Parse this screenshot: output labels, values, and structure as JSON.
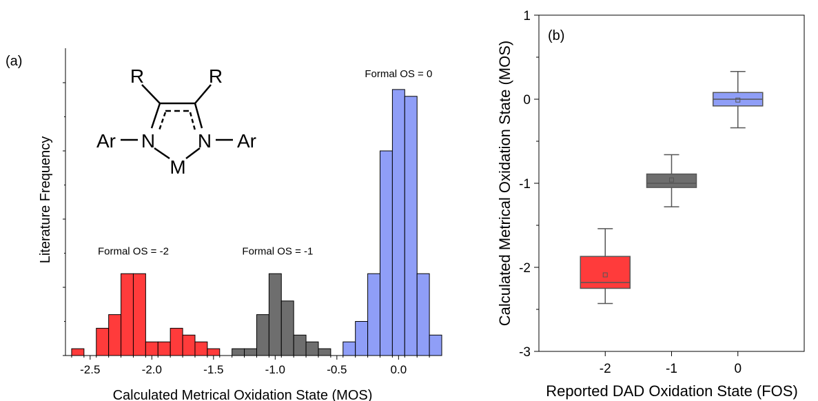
{
  "chart_data": [
    {
      "type": "bar",
      "panel_label": "(a)",
      "xlabel": "Calculated Metrical Oxidation State (MOS)",
      "ylabel": "Literature Frequency",
      "xlim": [
        -2.7,
        0.35
      ],
      "ylim": [
        0,
        20
      ],
      "x_tick_labels": [
        "-2.5",
        "-2.0",
        "-1.5",
        "-1.0",
        "-0.5",
        "0.0"
      ],
      "x_ticks": [
        -2.5,
        -2.0,
        -1.5,
        -1.0,
        -0.5,
        0.0
      ],
      "y_ticks": [
        0,
        5,
        10,
        15,
        20
      ],
      "bin_width": 0.1,
      "series": [
        {
          "name": "Formal OS = -2",
          "color": "#ff3b3b",
          "label_x": -2.15,
          "label_y": 7.4,
          "bins": [
            {
              "x": -2.6,
              "count": 0.5
            },
            {
              "x": -2.4,
              "count": 2
            },
            {
              "x": -2.3,
              "count": 3
            },
            {
              "x": -2.2,
              "count": 6
            },
            {
              "x": -2.1,
              "count": 6
            },
            {
              "x": -2.0,
              "count": 1
            },
            {
              "x": -1.9,
              "count": 1
            },
            {
              "x": -1.8,
              "count": 2
            },
            {
              "x": -1.7,
              "count": 1.5
            },
            {
              "x": -1.6,
              "count": 1
            },
            {
              "x": -1.5,
              "count": 0.5
            }
          ]
        },
        {
          "name": "Formal OS = -1",
          "color": "#6e6e6e",
          "label_x": -0.98,
          "label_y": 7.4,
          "bins": [
            {
              "x": -1.3,
              "count": 0.5
            },
            {
              "x": -1.2,
              "count": 0.5
            },
            {
              "x": -1.1,
              "count": 3
            },
            {
              "x": -1.0,
              "count": 6
            },
            {
              "x": -0.9,
              "count": 4
            },
            {
              "x": -0.8,
              "count": 1.5
            },
            {
              "x": -0.7,
              "count": 1
            },
            {
              "x": -0.6,
              "count": 0.5
            }
          ]
        },
        {
          "name": "Formal OS = 0",
          "color": "#8f9ef7",
          "label_x": 0.0,
          "label_y": 20.4,
          "bins": [
            {
              "x": -0.4,
              "count": 1
            },
            {
              "x": -0.3,
              "count": 2.5
            },
            {
              "x": -0.2,
              "count": 6
            },
            {
              "x": -0.1,
              "count": 15
            },
            {
              "x": 0.0,
              "count": 19.5
            },
            {
              "x": 0.1,
              "count": 19
            },
            {
              "x": 0.2,
              "count": 6
            },
            {
              "x": 0.3,
              "count": 1.5
            }
          ]
        }
      ]
    },
    {
      "type": "box",
      "panel_label": "(b)",
      "xlabel": "Reported DAD Oxidation State (FOS)",
      "ylabel": "Calculated Metrical Oxidation State (MOS)",
      "categories": [
        "-2",
        "-1",
        "0"
      ],
      "ylim": [
        -3,
        1
      ],
      "y_ticks": [
        -3,
        -2,
        -1,
        0,
        1
      ],
      "y_tick_labels": [
        "-3",
        "-2",
        "-1",
        "0",
        "1"
      ],
      "boxes": [
        {
          "category": "-2",
          "color": "#ff3b3b",
          "min": -2.43,
          "q1": -2.25,
          "median": -2.18,
          "q3": -1.87,
          "max": -1.54,
          "mean": -2.09
        },
        {
          "category": "-1",
          "color": "#6e6e6e",
          "min": -1.28,
          "q1": -1.05,
          "median": -1.0,
          "q3": -0.89,
          "max": -0.66,
          "mean": -0.96
        },
        {
          "category": "0",
          "color": "#8f9ef7",
          "min": -0.34,
          "q1": -0.08,
          "median": 0.0,
          "q3": 0.08,
          "max": 0.33,
          "mean": -0.01
        }
      ]
    }
  ],
  "structure": {
    "r_left": "R",
    "r_right": "R",
    "n_left": "N",
    "n_right": "N",
    "ar_left": "Ar",
    "ar_right": "Ar",
    "metal": "M"
  }
}
